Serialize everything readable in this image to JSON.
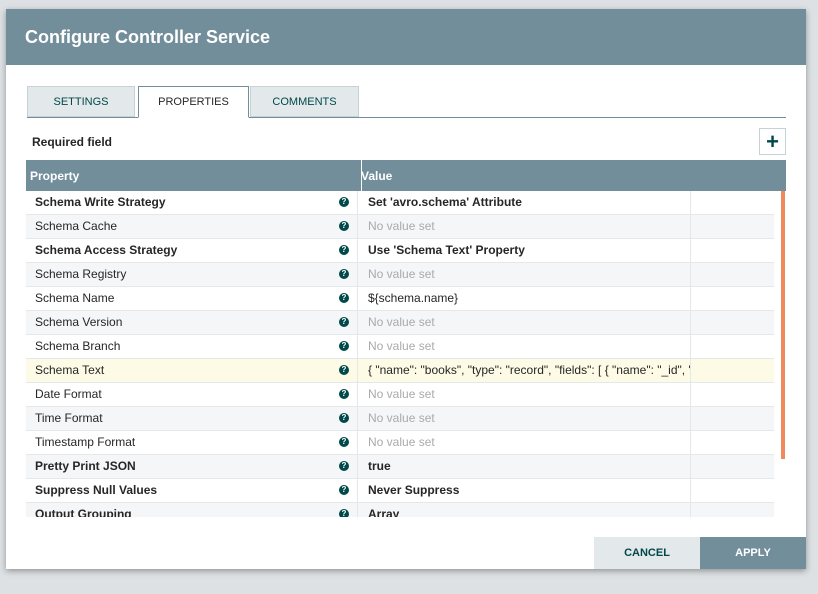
{
  "dialog": {
    "title": "Configure Controller Service",
    "tabs": [
      {
        "label": "SETTINGS",
        "selected": false
      },
      {
        "label": "PROPERTIES",
        "selected": true
      },
      {
        "label": "COMMENTS",
        "selected": false
      }
    ],
    "required_label": "Required field",
    "table": {
      "columns": [
        "Property",
        "Value"
      ],
      "rows": [
        {
          "property": "Schema Write Strategy",
          "value": "Set 'avro.schema' Attribute",
          "required": true,
          "set": true,
          "highlighted": false
        },
        {
          "property": "Schema Cache",
          "value": "No value set",
          "required": false,
          "set": false,
          "highlighted": false
        },
        {
          "property": "Schema Access Strategy",
          "value": "Use 'Schema Text' Property",
          "required": true,
          "set": true,
          "highlighted": false
        },
        {
          "property": "Schema Registry",
          "value": "No value set",
          "required": false,
          "set": false,
          "highlighted": false
        },
        {
          "property": "Schema Name",
          "value": "${schema.name}",
          "required": false,
          "set": true,
          "highlighted": false
        },
        {
          "property": "Schema Version",
          "value": "No value set",
          "required": false,
          "set": false,
          "highlighted": false
        },
        {
          "property": "Schema Branch",
          "value": "No value set",
          "required": false,
          "set": false,
          "highlighted": false
        },
        {
          "property": "Schema Text",
          "value": "{ \"name\": \"books\", \"type\": \"record\", \"fields\": [ { \"name\": \"_id\", \"t...",
          "required": false,
          "set": true,
          "highlighted": true
        },
        {
          "property": "Date Format",
          "value": "No value set",
          "required": false,
          "set": false,
          "highlighted": false
        },
        {
          "property": "Time Format",
          "value": "No value set",
          "required": false,
          "set": false,
          "highlighted": false
        },
        {
          "property": "Timestamp Format",
          "value": "No value set",
          "required": false,
          "set": false,
          "highlighted": false
        },
        {
          "property": "Pretty Print JSON",
          "value": "true",
          "required": true,
          "set": true,
          "highlighted": false
        },
        {
          "property": "Suppress Null Values",
          "value": "Never Suppress",
          "required": true,
          "set": true,
          "highlighted": false
        },
        {
          "property": "Output Grouping",
          "value": "Array",
          "required": true,
          "set": true,
          "highlighted": false
        }
      ]
    },
    "buttons": {
      "cancel": "CANCEL",
      "apply": "APPLY"
    }
  }
}
